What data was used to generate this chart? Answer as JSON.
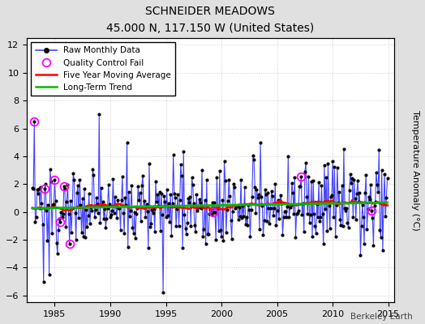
{
  "title": "SCHNEIDER MEADOWS",
  "subtitle": "45.000 N, 117.150 W (United States)",
  "ylabel": "Temperature Anomaly (°C)",
  "credit": "Berkeley Earth",
  "xlim": [
    1982.5,
    2015.5
  ],
  "ylim": [
    -6.5,
    12.5
  ],
  "yticks": [
    -6,
    -4,
    -2,
    0,
    2,
    4,
    6,
    8,
    10,
    12
  ],
  "xticks": [
    1985,
    1990,
    1995,
    2000,
    2005,
    2010,
    2015
  ],
  "bg_color": "#e0e0e0",
  "plot_bg_color": "#ffffff",
  "raw_line_color": "#4444ff",
  "raw_marker_color": "#000000",
  "qc_fail_color": "#ff00ff",
  "moving_avg_color": "#ff0000",
  "trend_color": "#00bb00",
  "grid_color": "#cccccc",
  "seed": 137
}
